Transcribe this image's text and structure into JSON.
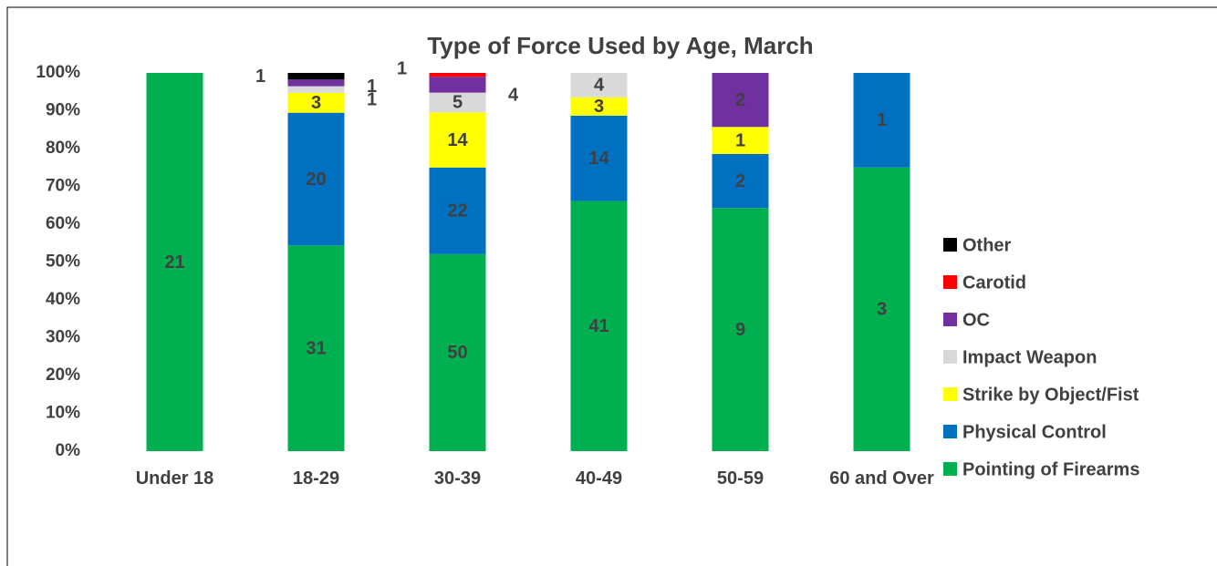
{
  "chart_data": {
    "type": "bar",
    "stacking": "percent",
    "title": "Type of Force Used by Age, March",
    "categories": [
      "Under 18",
      "18-29",
      "30-39",
      "40-49",
      "50-59",
      "60 and Over"
    ],
    "series": [
      {
        "name": "Pointing of Firearms",
        "color": "#00b050",
        "values": [
          21,
          31,
          50,
          41,
          9,
          3
        ]
      },
      {
        "name": "Physical Control",
        "color": "#0070c0",
        "values": [
          0,
          20,
          22,
          14,
          2,
          1
        ]
      },
      {
        "name": "Strike by Object/Fist",
        "color": "#ffff00",
        "values": [
          0,
          3,
          14,
          3,
          1,
          0
        ]
      },
      {
        "name": "Impact Weapon",
        "color": "#d9d9d9",
        "values": [
          0,
          1,
          5,
          4,
          0,
          0
        ]
      },
      {
        "name": "OC",
        "color": "#7030a0",
        "values": [
          0,
          1,
          4,
          0,
          2,
          0
        ]
      },
      {
        "name": "Carotid",
        "color": "#ff0000",
        "values": [
          0,
          0,
          1,
          0,
          0,
          0
        ]
      },
      {
        "name": "Other",
        "color": "#000000",
        "values": [
          0,
          1,
          0,
          0,
          0,
          0
        ]
      }
    ],
    "ylim": [
      0,
      100
    ],
    "yticks": [
      {
        "value": 0,
        "label": "0%"
      },
      {
        "value": 10,
        "label": "10%"
      },
      {
        "value": 20,
        "label": "20%"
      },
      {
        "value": 30,
        "label": "30%"
      },
      {
        "value": 40,
        "label": "40%"
      },
      {
        "value": 50,
        "label": "50%"
      },
      {
        "value": 60,
        "label": "60%"
      },
      {
        "value": 70,
        "label": "70%"
      },
      {
        "value": 80,
        "label": "80%"
      },
      {
        "value": 90,
        "label": "90%"
      },
      {
        "value": 100,
        "label": "100%"
      }
    ],
    "grid": false,
    "legend": "right"
  }
}
